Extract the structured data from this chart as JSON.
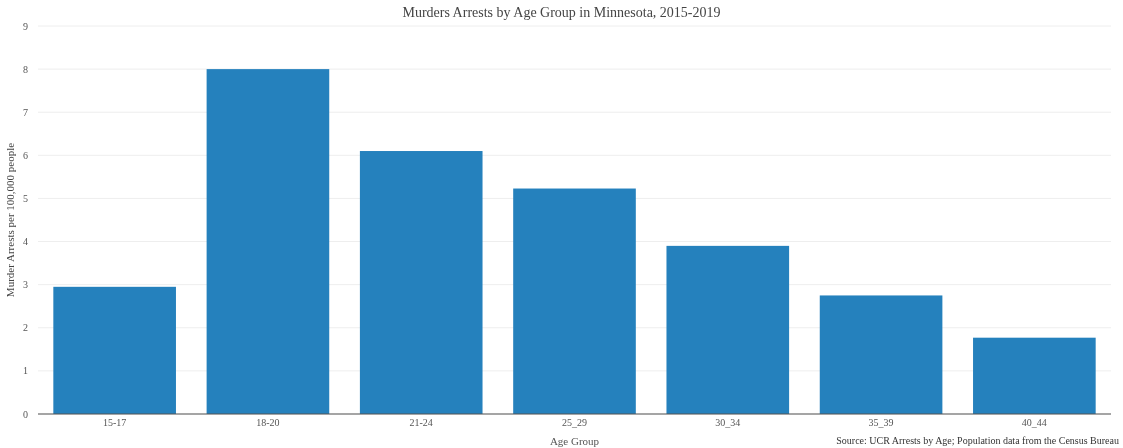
{
  "chart_data": {
    "type": "bar",
    "title": "Murders Arrests by Age Group in Minnesota, 2015-2019",
    "xlabel": "Age Group",
    "ylabel": "Murder Arrests per 100,000 people",
    "categories": [
      "15-17",
      "18-20",
      "21-24",
      "25_29",
      "30_34",
      "35_39",
      "40_44"
    ],
    "series": [
      {
        "color": "#2581bd",
        "values": [
          2.95,
          8.0,
          6.1,
          5.23,
          3.9,
          2.75,
          1.77
        ]
      }
    ],
    "ylim": [
      0,
      9
    ],
    "yticks": [
      0,
      1,
      2,
      3,
      4,
      5,
      6,
      7,
      8,
      9
    ],
    "grid": "y",
    "annotations": [
      "Source: UCR Arrests by Age; Population data from the Census Bureau"
    ]
  }
}
